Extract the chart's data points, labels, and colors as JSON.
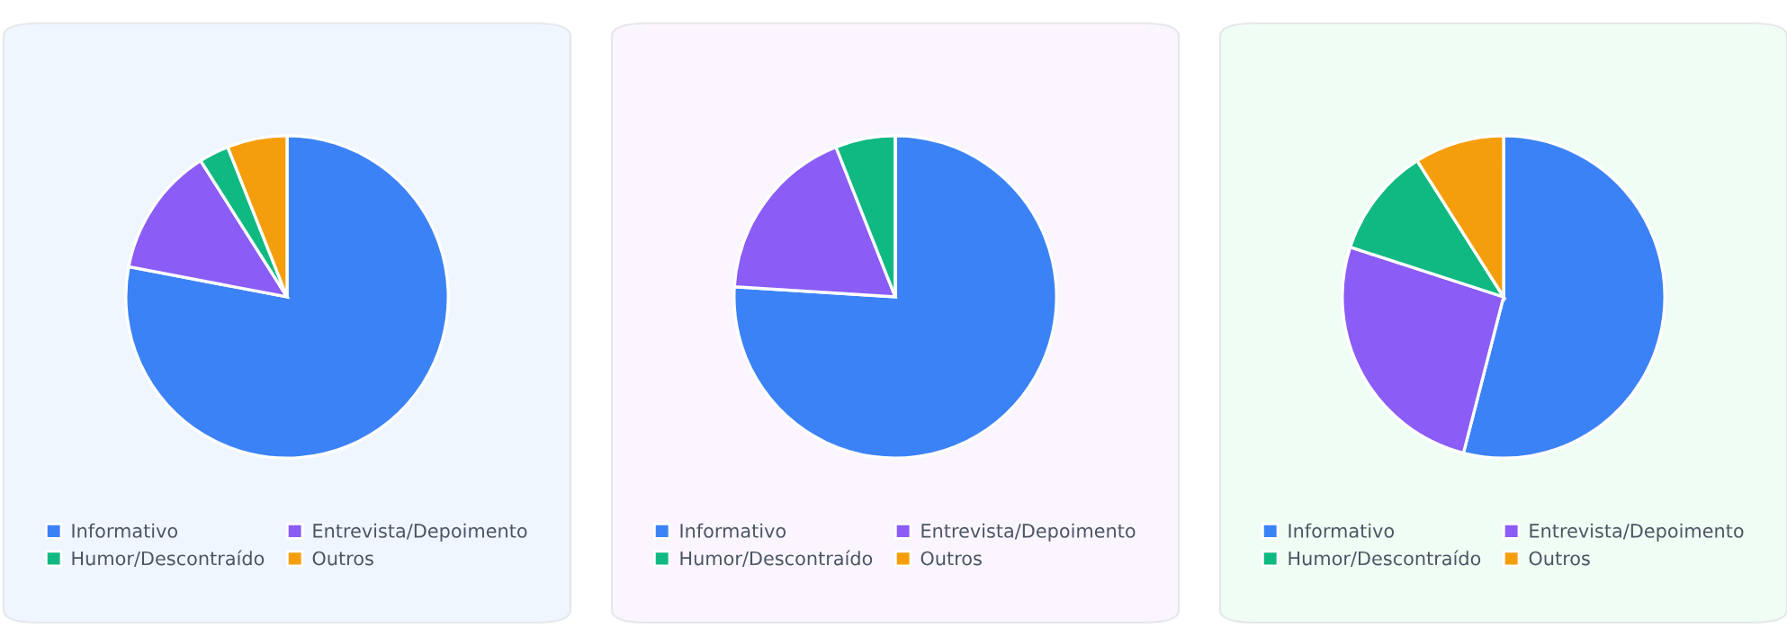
{
  "chart_data": [
    {
      "type": "pie",
      "categories": [
        "Informativo",
        "Entrevista/Depoimento",
        "Humor/Descontraído",
        "Outros"
      ],
      "values": [
        78,
        13,
        3,
        6
      ],
      "colors": [
        "#3b82f6",
        "#8b5cf6",
        "#10b981",
        "#f59e0b"
      ],
      "legend": "bottom"
    },
    {
      "type": "pie",
      "categories": [
        "Informativo",
        "Entrevista/Depoimento",
        "Humor/Descontraído",
        "Outros"
      ],
      "values": [
        76,
        18,
        6,
        0
      ],
      "colors": [
        "#3b82f6",
        "#8b5cf6",
        "#10b981",
        "#f59e0b"
      ],
      "legend": "bottom"
    },
    {
      "type": "pie",
      "categories": [
        "Informativo",
        "Entrevista/Depoimento",
        "Humor/Descontraído",
        "Outros"
      ],
      "values": [
        54,
        26,
        11,
        9
      ],
      "colors": [
        "#3b82f6",
        "#8b5cf6",
        "#10b981",
        "#f59e0b"
      ],
      "legend": "bottom"
    }
  ]
}
